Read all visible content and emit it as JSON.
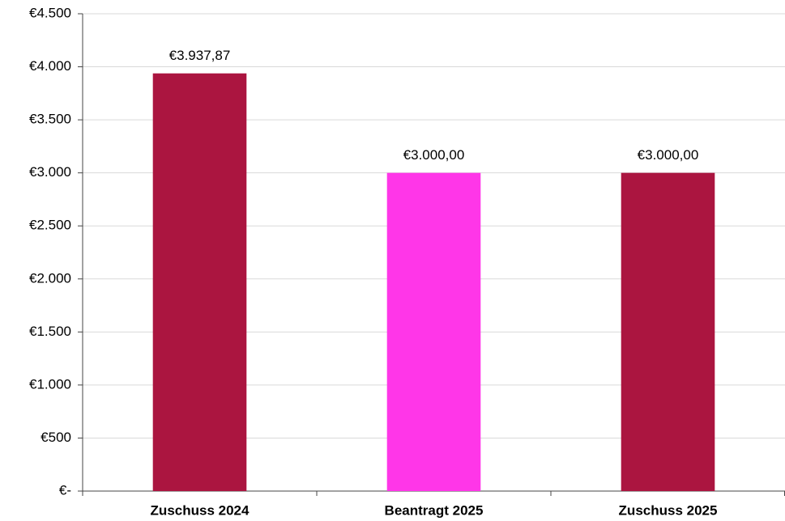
{
  "chart_data": {
    "type": "bar",
    "categories": [
      "Zuschuss 2024",
      "Beantragt 2025",
      "Zuschuss 2025"
    ],
    "values": [
      3937.87,
      3000,
      3000
    ],
    "value_labels": [
      "€3.937,87",
      "€3.000,00",
      "€3.000,00"
    ],
    "colors": [
      "#ab1540",
      "#ff36e8",
      "#ab1540"
    ],
    "ylim": [
      0,
      4500
    ],
    "yticks": [
      {
        "value": 0,
        "label": "€-"
      },
      {
        "value": 500,
        "label": "€500"
      },
      {
        "value": 1000,
        "label": "€1.000"
      },
      {
        "value": 1500,
        "label": "€1.500"
      },
      {
        "value": 2000,
        "label": "€2.000"
      },
      {
        "value": 2500,
        "label": "€2.500"
      },
      {
        "value": 3000,
        "label": "€3.000"
      },
      {
        "value": 3500,
        "label": "€3.500"
      },
      {
        "value": 4000,
        "label": "€4.000"
      },
      {
        "value": 4500,
        "label": "€4.500"
      }
    ],
    "grid": true
  }
}
